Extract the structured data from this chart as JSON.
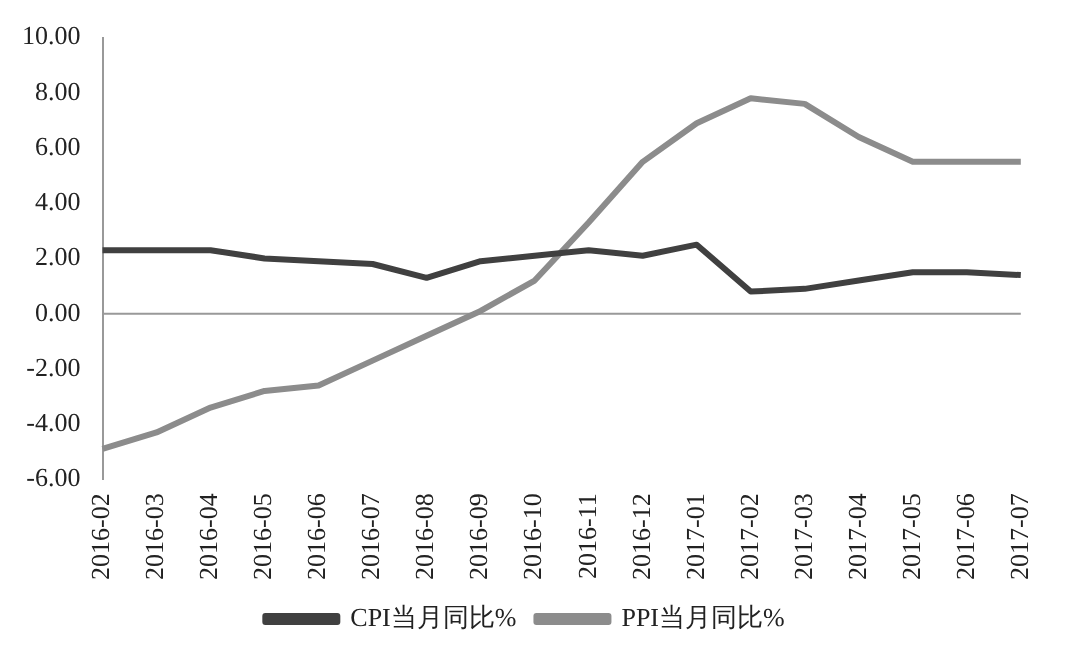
{
  "chart_data": {
    "type": "line",
    "categories": [
      "2016-02",
      "2016-03",
      "2016-04",
      "2016-05",
      "2016-06",
      "2016-07",
      "2016-08",
      "2016-09",
      "2016-10",
      "2016-11",
      "2016-12",
      "2017-01",
      "2017-02",
      "2017-03",
      "2017-04",
      "2017-05",
      "2017-06",
      "2017-07"
    ],
    "series": [
      {
        "name": "CPI当月同比%",
        "color": "#404040",
        "values": [
          2.3,
          2.3,
          2.3,
          2.0,
          1.9,
          1.8,
          1.3,
          1.9,
          2.1,
          2.3,
          2.1,
          2.5,
          0.8,
          0.9,
          1.2,
          1.5,
          1.5,
          1.4
        ]
      },
      {
        "name": "PPI当月同比%",
        "color": "#8c8c8c",
        "values": [
          -4.9,
          -4.3,
          -3.4,
          -2.8,
          -2.6,
          -1.7,
          -0.8,
          0.1,
          1.2,
          3.3,
          5.5,
          6.9,
          7.8,
          7.6,
          6.4,
          5.5,
          5.5,
          5.5
        ]
      }
    ],
    "ylim": [
      -6,
      10
    ],
    "yticks": [
      {
        "value": -6,
        "label": "-6.00"
      },
      {
        "value": -4,
        "label": "-4.00"
      },
      {
        "value": -2,
        "label": "-2.00"
      },
      {
        "value": 0,
        "label": "0.00"
      },
      {
        "value": 2,
        "label": "2.00"
      },
      {
        "value": 4,
        "label": "4.00"
      },
      {
        "value": 6,
        "label": "6.00"
      },
      {
        "value": 8,
        "label": "8.00"
      },
      {
        "value": 10,
        "label": "10.00"
      }
    ],
    "grid": false,
    "ref_lines": [
      {
        "axis": "y",
        "value": 0,
        "color": "#999999",
        "line_style": "solid"
      }
    ],
    "legend": "bottom",
    "marker": "none",
    "line_style": "solid"
  }
}
